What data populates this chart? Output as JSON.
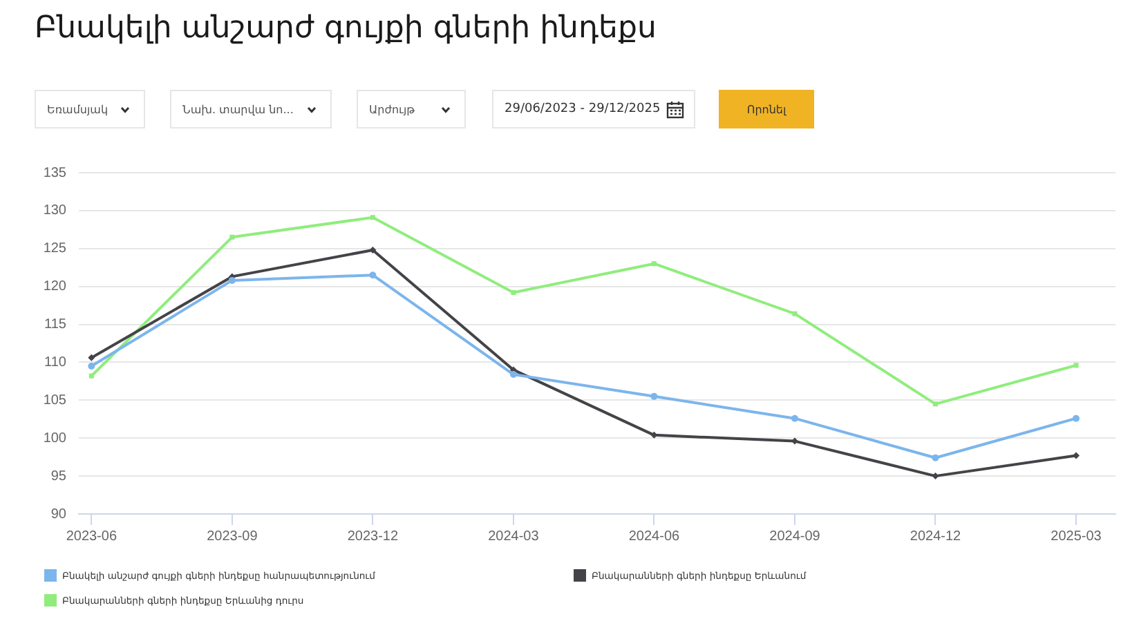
{
  "chart_data": {
    "type": "line",
    "title": "Բնակելի անշարժ գույքի գների ինդեքս",
    "annotations": [
      "Եռամսյակ",
      "Նախ. տարվա նո...",
      "Արժույթ",
      "29/06/2023 - 29/12/2025",
      "Որոնել"
    ],
    "categories": [
      "2023-06",
      "2023-09",
      "2023-12",
      "2024-03",
      "2024-06",
      "2024-09",
      "2024-12",
      "2025-03"
    ],
    "series": [
      {
        "name": "Բնակելի անշարժ գույքի գների ինդեքսը հանրապետությունում",
        "color": "#7cb5ec",
        "marker": "circle",
        "values": [
          109.5,
          120.8,
          121.5,
          108.4,
          105.5,
          102.6,
          97.4,
          102.6
        ]
      },
      {
        "name": "Բնակարանների գների ինդեքսը Երևանում",
        "color": "#434348",
        "marker": "diamond",
        "values": [
          110.6,
          121.3,
          124.8,
          109.0,
          100.4,
          99.6,
          95.0,
          97.7
        ]
      },
      {
        "name": "Բնակարանների գների ինդեքսը Երևանից դուրս",
        "color": "#90ed7d",
        "marker": "square",
        "values": [
          108.2,
          126.5,
          129.1,
          119.2,
          123.0,
          116.4,
          104.5,
          109.6
        ]
      }
    ],
    "ylim": [
      90,
      135
    ],
    "yticks": [
      90,
      95,
      100,
      105,
      110,
      115,
      120,
      125,
      130,
      135
    ],
    "grid": "y",
    "legend": "bottom",
    "line_style": "solid"
  }
}
